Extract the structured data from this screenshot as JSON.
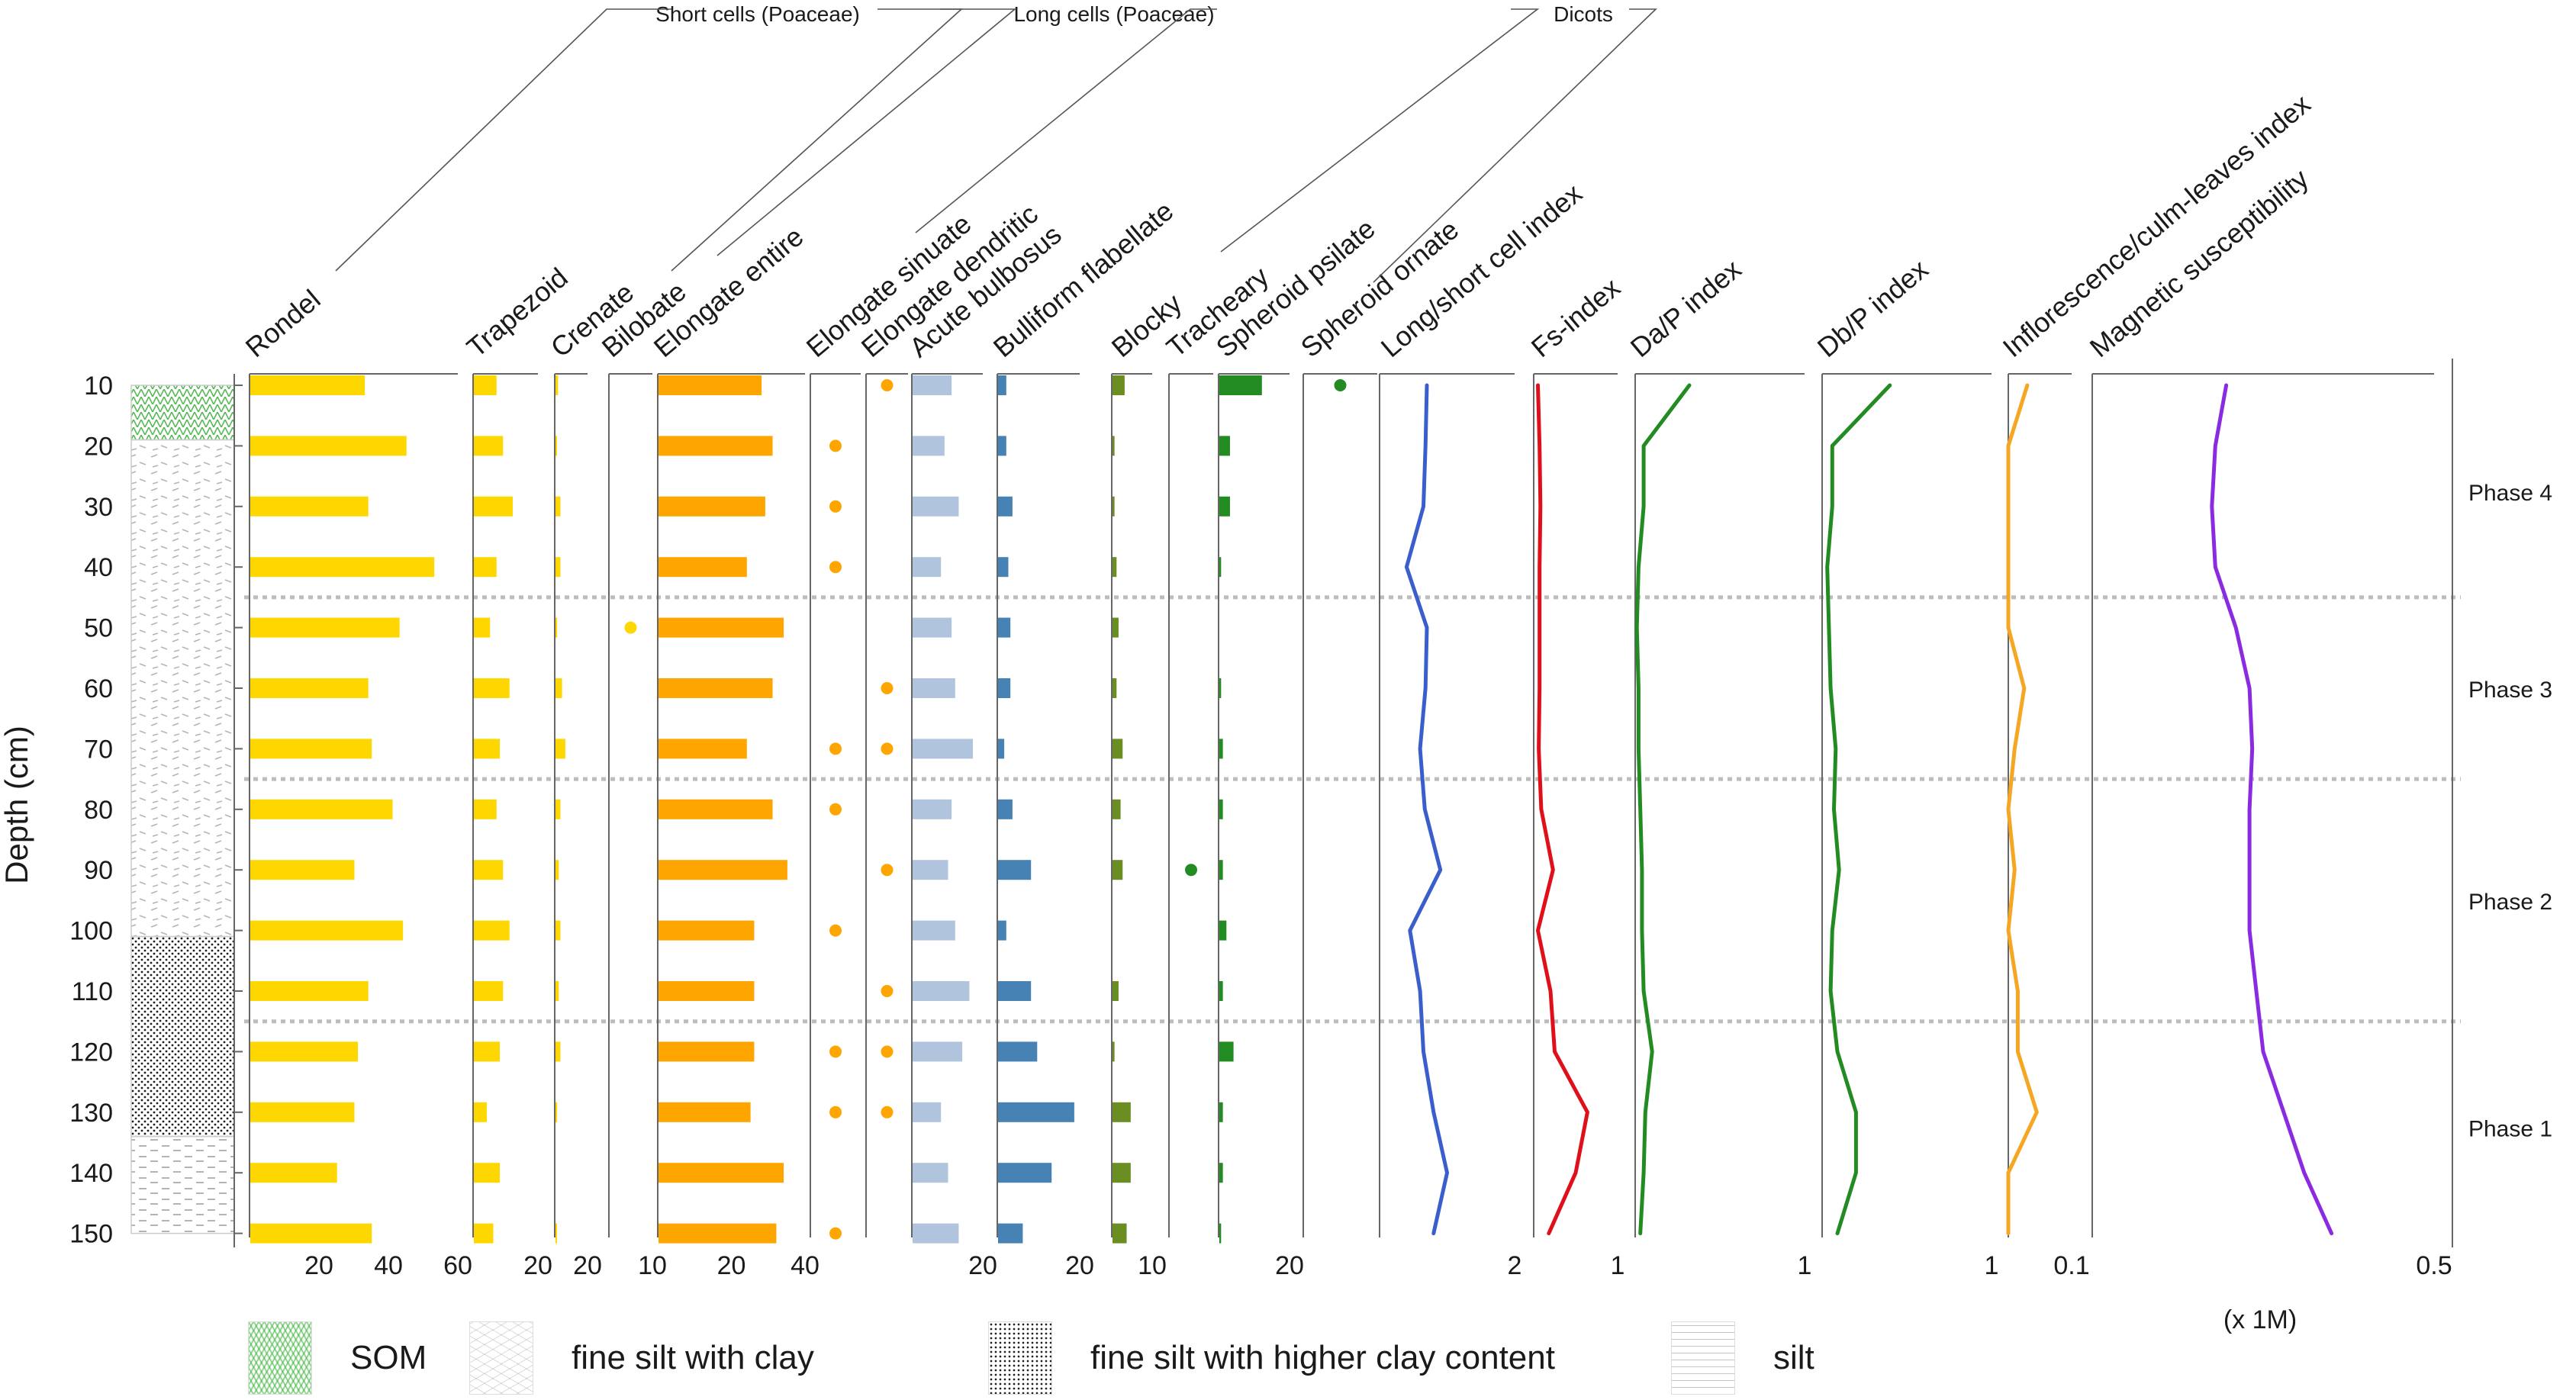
{
  "chart_data": {
    "type": "stratigraphic-diagram",
    "y_axis": {
      "label": "Depth (cm)",
      "ticks": [
        10,
        20,
        30,
        40,
        50,
        60,
        70,
        80,
        90,
        100,
        110,
        120,
        130,
        140,
        150
      ]
    },
    "depths": [
      10,
      20,
      30,
      40,
      50,
      60,
      70,
      80,
      90,
      100,
      110,
      120,
      130,
      140,
      150
    ],
    "phases": [
      {
        "label": "Phase 4",
        "from": 10,
        "to": 45
      },
      {
        "label": "Phase 3",
        "from": 45,
        "to": 75
      },
      {
        "label": "Phase 2",
        "from": 75,
        "to": 115
      },
      {
        "label": "Phase 1",
        "from": 115,
        "to": 150
      }
    ],
    "phase_boundaries": [
      45,
      75,
      115
    ],
    "groups": [
      {
        "label": "Short cells (Poaceae)"
      },
      {
        "label": "Long cells (Poaceae)"
      },
      {
        "label": "Dicots"
      }
    ],
    "series": [
      {
        "name": "Rondel",
        "kind": "bar",
        "color": "#FFD700",
        "max": 60,
        "ticks": [
          "20",
          "40",
          "60"
        ],
        "values": [
          33,
          45,
          34,
          53,
          43,
          34,
          35,
          41,
          30,
          44,
          34,
          31,
          30,
          25,
          35
        ]
      },
      {
        "name": "Trapezoid",
        "kind": "bar",
        "color": "#FFD700",
        "max": 20,
        "ticks": [
          "20"
        ],
        "values": [
          7,
          9,
          12,
          7,
          5,
          11,
          8,
          7,
          9,
          11,
          9,
          8,
          4,
          8,
          6
        ]
      },
      {
        "name": "Crenate",
        "kind": "bar",
        "color": "#FFD700",
        "max": 20,
        "ticks": [
          "20"
        ],
        "values": [
          1.5,
          0.5,
          3,
          3,
          1,
          4,
          6,
          3,
          2,
          3,
          2,
          3,
          1,
          0,
          0.5
        ]
      },
      {
        "name": "Bilobate",
        "kind": "dot",
        "color": "#FFD700",
        "max": 10,
        "ticks": [
          "10"
        ],
        "values": [
          0,
          0,
          0,
          0,
          1,
          0,
          0,
          0,
          0,
          0,
          0,
          0,
          0,
          0,
          0
        ]
      },
      {
        "name": "Elongate entire",
        "kind": "bar",
        "color": "#FFA500",
        "max": 40,
        "ticks": [
          "20",
          "40"
        ],
        "values": [
          28,
          31,
          29,
          24,
          34,
          31,
          24,
          31,
          35,
          26,
          26,
          26,
          25,
          34,
          32
        ]
      },
      {
        "name": "Elongate sinuate",
        "kind": "dot",
        "color": "#FFA500",
        "max": 10,
        "ticks": [],
        "values": [
          0,
          1,
          1,
          1,
          0,
          0,
          1,
          1,
          0,
          1,
          0,
          1,
          1,
          0,
          1
        ]
      },
      {
        "name": "Elongate dendritic",
        "kind": "dot",
        "color": "#FFA500",
        "max": 10,
        "ticks": [],
        "values": [
          1,
          0,
          0,
          0,
          0,
          1,
          1,
          0,
          1,
          0,
          1,
          1,
          1,
          0,
          0
        ]
      },
      {
        "name": "Acute bulbosus",
        "kind": "bar",
        "color": "#B0C4DE",
        "max": 20,
        "ticks": [
          "20"
        ],
        "values": [
          11,
          9,
          13,
          8,
          11,
          12,
          17,
          11,
          10,
          12,
          16,
          14,
          8,
          10,
          13
        ]
      },
      {
        "name": "Bulliform flabellate",
        "kind": "bar",
        "color": "#4682B4",
        "max": 20,
        "ticks": [
          "20"
        ],
        "values": [
          2,
          2,
          3.5,
          2.5,
          3,
          3,
          1.5,
          3.5,
          8,
          2,
          8,
          9.5,
          18.5,
          13,
          6
        ]
      },
      {
        "name": "Blocky",
        "kind": "bar",
        "color": "#6B8E23",
        "max": 10,
        "ticks": [
          "10"
        ],
        "values": [
          3,
          0.5,
          0.5,
          1,
          1.5,
          1,
          2.5,
          2,
          2.5,
          0,
          1.5,
          0.5,
          4.5,
          4.5,
          3.5
        ]
      },
      {
        "name": "Tracheary",
        "kind": "dot",
        "color": "#228B22",
        "max": 10,
        "ticks": [],
        "values": [
          0,
          0,
          0,
          0,
          0,
          0,
          0,
          0,
          1,
          0,
          0,
          0,
          0,
          0,
          0
        ]
      },
      {
        "name": "Spheroid psilate",
        "kind": "bar",
        "color": "#228B22",
        "max": 20,
        "ticks": [
          "20"
        ],
        "values": [
          12,
          3,
          3,
          0.5,
          0,
          0.5,
          1,
          1,
          1,
          2,
          1,
          4,
          1,
          1,
          0.5
        ]
      },
      {
        "name": "Spheroid ornate",
        "kind": "dot",
        "color": "#228B22",
        "max": 10,
        "ticks": [],
        "values": [
          1,
          0,
          0,
          0,
          0,
          0,
          0,
          0,
          0,
          0,
          0,
          0,
          0,
          0,
          0
        ]
      },
      {
        "name": "Long/short cell index",
        "kind": "line",
        "color": "#3A5FCD",
        "max": 2,
        "ticks": [
          "2"
        ],
        "values": [
          0.7,
          0.68,
          0.65,
          0.4,
          0.7,
          0.68,
          0.6,
          0.67,
          0.9,
          0.45,
          0.6,
          0.65,
          0.8,
          1.0,
          0.8
        ]
      },
      {
        "name": "Fs-index",
        "kind": "line",
        "color": "#E0101A",
        "max": 1,
        "ticks": [
          "1"
        ],
        "values": [
          0.05,
          0.07,
          0.08,
          0.07,
          0.07,
          0.07,
          0.06,
          0.09,
          0.23,
          0.05,
          0.2,
          0.25,
          0.64,
          0.5,
          0.18
        ]
      },
      {
        "name": "Da/P index",
        "kind": "line",
        "color": "#228B22",
        "max": 1,
        "ticks": [
          "1"
        ],
        "values": [
          0.32,
          0.05,
          0.05,
          0.02,
          0.01,
          0.02,
          0.02,
          0.03,
          0.04,
          0.04,
          0.05,
          0.1,
          0.06,
          0.05,
          0.03
        ]
      },
      {
        "name": "Db/P index",
        "kind": "line",
        "color": "#228B22",
        "max": 1,
        "ticks": [
          "1"
        ],
        "values": [
          0.4,
          0.06,
          0.06,
          0.03,
          0.04,
          0.05,
          0.08,
          0.07,
          0.1,
          0.06,
          0.05,
          0.09,
          0.2,
          0.2,
          0.09
        ]
      },
      {
        "name": "Inflorescence/culm-leaves index",
        "kind": "line",
        "color": "#F5A623",
        "max": 0.1,
        "ticks": [
          "0.1"
        ],
        "values": [
          0.03,
          0.0,
          0.0,
          0.0,
          0.0,
          0.025,
          0.01,
          0.0,
          0.01,
          0.0,
          0.015,
          0.015,
          0.045,
          0.0,
          0.0
        ]
      },
      {
        "name": "Magnetic susceptibility",
        "kind": "line",
        "color": "#8A2BE2",
        "max": 0.5,
        "ticks": [
          "0.5"
        ],
        "units": "(x 1M)",
        "values": [
          0.196,
          0.18,
          0.175,
          0.18,
          0.21,
          0.23,
          0.234,
          0.23,
          0.23,
          0.23,
          0.24,
          0.25,
          0.28,
          0.31,
          0.35
        ]
      }
    ],
    "lithology": [
      {
        "from": 10,
        "to": 19,
        "type": "SOM"
      },
      {
        "from": 19,
        "to": 101,
        "type": "fine silt with clay"
      },
      {
        "from": 101,
        "to": 134,
        "type": "fine silt with higher clay content"
      },
      {
        "from": 134,
        "to": 150,
        "type": "silt"
      }
    ]
  },
  "legend": [
    {
      "key": "SOM",
      "label": "SOM"
    },
    {
      "key": "fsc",
      "label": "fine silt with clay"
    },
    {
      "key": "fsh",
      "label": "fine silt with higher clay content"
    },
    {
      "key": "silt",
      "label": "silt"
    }
  ]
}
